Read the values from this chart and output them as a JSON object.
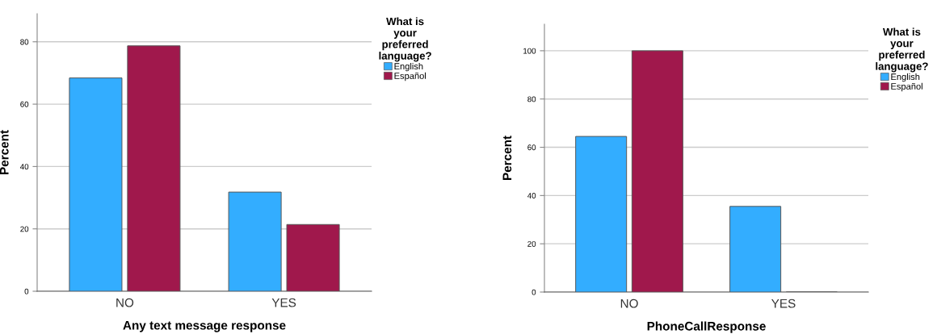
{
  "chart_data": [
    {
      "type": "bar",
      "xlabel": "Any text message response",
      "ylabel": "Percent",
      "legend_title": "What is\nyour\npreferred\nlanguage?",
      "categories": [
        "NO",
        "YES"
      ],
      "series": [
        {
          "name": "English",
          "color": "#33adff",
          "values": [
            68.4,
            31.8
          ]
        },
        {
          "name": "Español",
          "color": "#a0184c",
          "values": [
            78.7,
            21.4
          ]
        }
      ],
      "ylim": [
        0,
        89
      ],
      "yticks": [
        0,
        20,
        40,
        60,
        80
      ],
      "grid": "y",
      "legend": "top right"
    },
    {
      "type": "bar",
      "xlabel": "PhoneCallResponse",
      "ylabel": "Percent",
      "legend_title": "What is\nyour\npreferred\nlanguage?",
      "categories": [
        "NO",
        "YES"
      ],
      "series": [
        {
          "name": "English",
          "color": "#33adff",
          "values": [
            64.5,
            35.5
          ]
        },
        {
          "name": "Español",
          "color": "#a0184c",
          "values": [
            100,
            0
          ]
        }
      ],
      "ylim": [
        0,
        111
      ],
      "yticks": [
        0,
        20,
        40,
        60,
        80,
        100
      ],
      "grid": "y",
      "legend": "top right"
    }
  ]
}
